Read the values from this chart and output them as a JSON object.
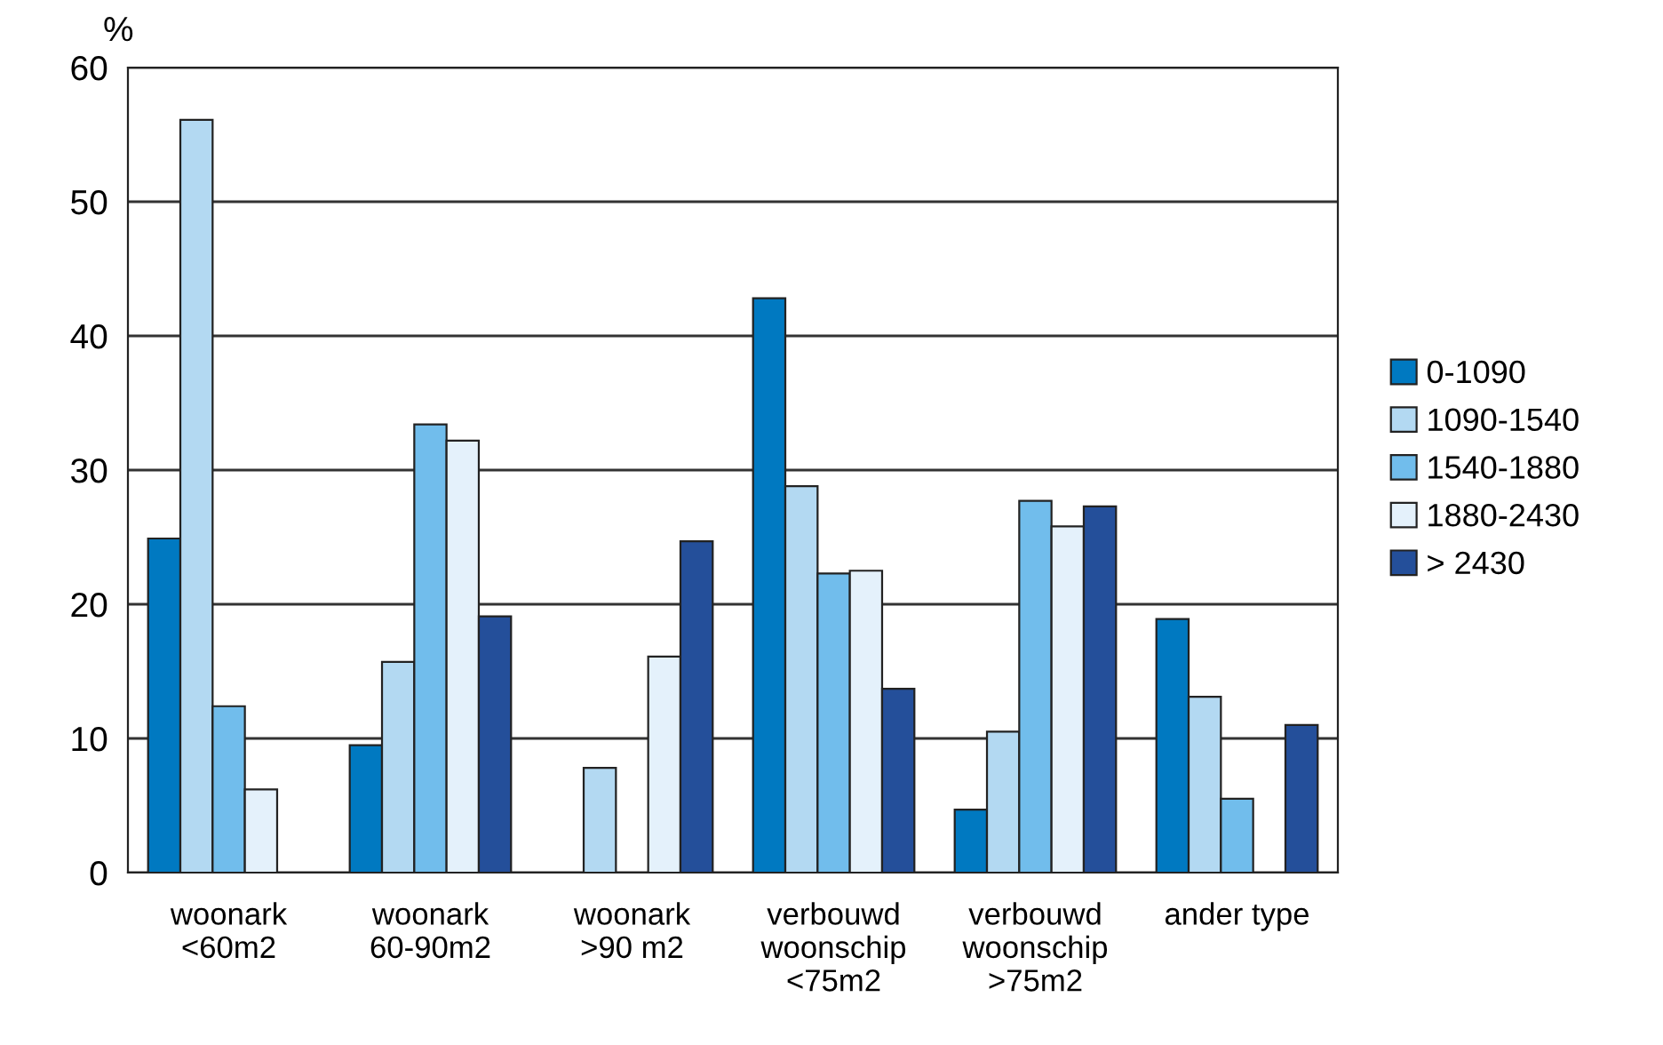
{
  "chart_data": {
    "type": "bar",
    "ylabel": "%",
    "categories": [
      "woonark\n<60m2",
      "woonark\n60-90m2",
      "woonark\n>90 m2",
      "verbouwd\nwoonschip\n<75m2",
      "verbouwd\nwoonschip\n>75m2",
      "ander type"
    ],
    "series": [
      {
        "name": "0-1090",
        "color": "#0079c1",
        "values": [
          24.9,
          9.5,
          null,
          42.8,
          4.7,
          18.9
        ]
      },
      {
        "name": "1090-1540",
        "color": "#b3d9f2",
        "values": [
          56.1,
          15.7,
          7.8,
          28.8,
          10.5,
          13.1
        ]
      },
      {
        "name": "1540-1880",
        "color": "#71bdec",
        "values": [
          12.4,
          33.4,
          null,
          22.3,
          27.7,
          5.5
        ]
      },
      {
        "name": "1880-2430",
        "color": "#e4f1fb",
        "values": [
          6.2,
          32.2,
          16.1,
          22.5,
          25.8,
          null
        ]
      },
      {
        "name": "> 2430",
        "color": "#244f9a",
        "values": [
          null,
          19.1,
          24.7,
          13.7,
          27.3,
          11.0
        ]
      }
    ],
    "ylim": [
      0,
      60
    ],
    "yticks": [
      0,
      10,
      20,
      30,
      40,
      50,
      60
    ],
    "grid": "y",
    "legend": "right"
  }
}
